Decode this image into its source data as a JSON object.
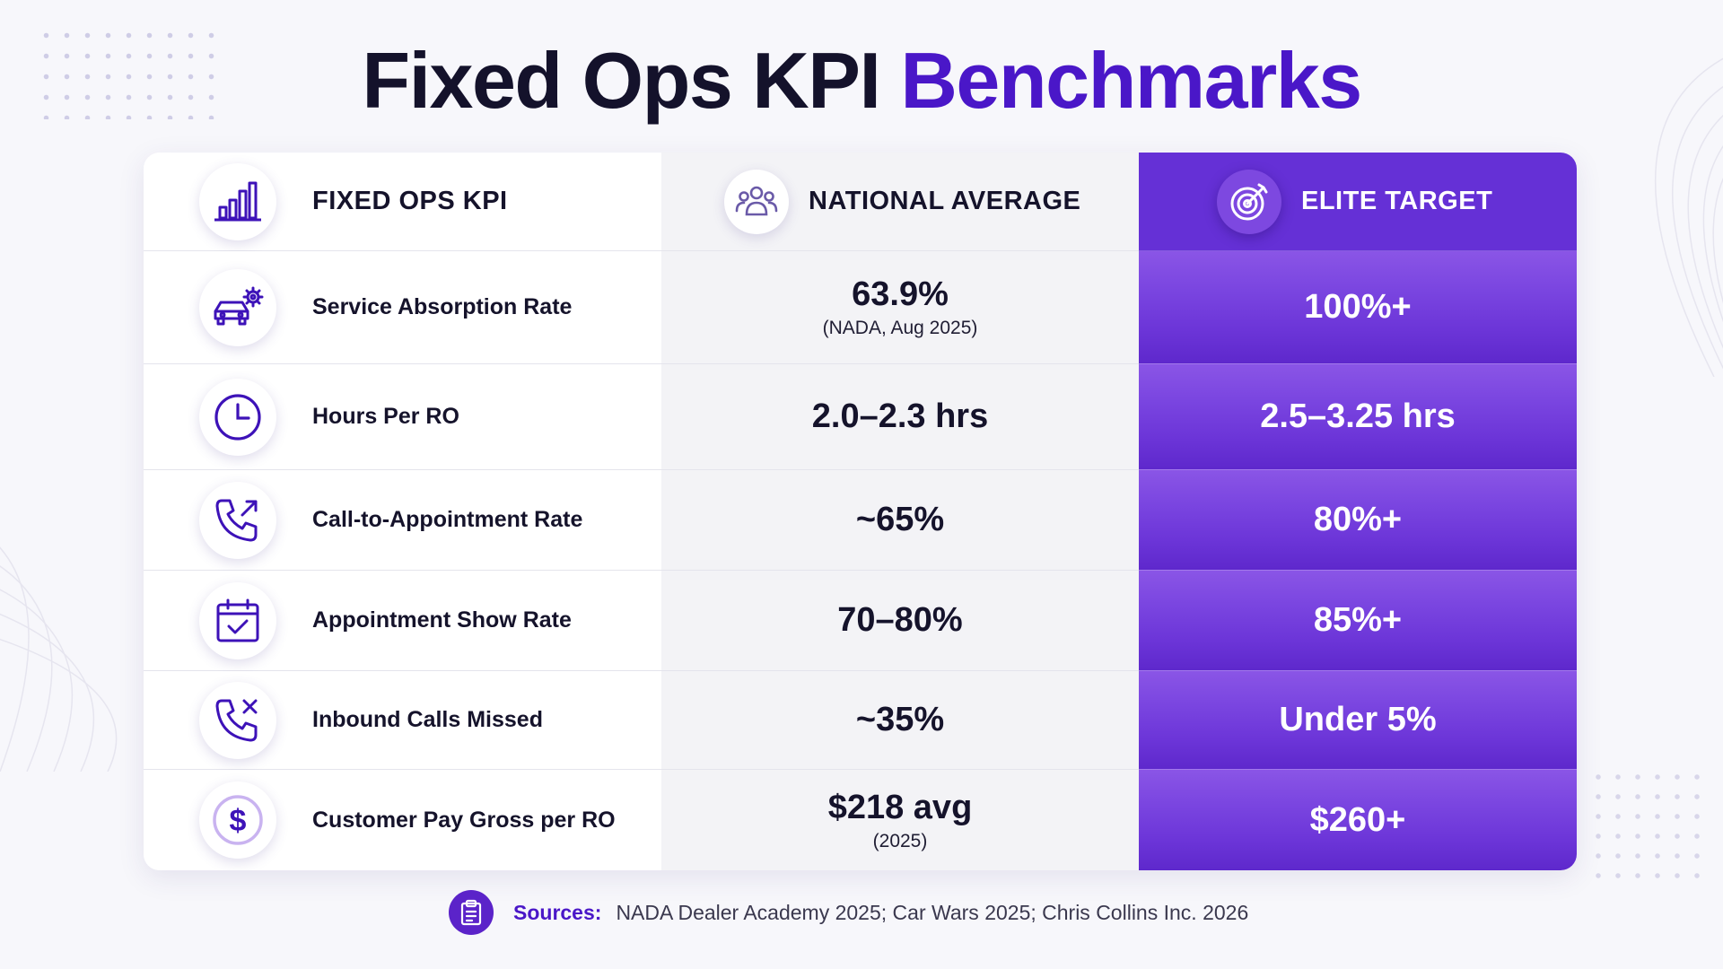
{
  "title": {
    "part1": "Fixed Ops KPI",
    "part2": "Benchmarks"
  },
  "header": {
    "kpi": {
      "label": "FIXED OPS KPI",
      "icon": "bar-chart-icon"
    },
    "national": {
      "label": "NATIONAL AVERAGE",
      "icon": "users-group-icon"
    },
    "elite": {
      "label": "ELITE TARGET",
      "icon": "target-icon"
    }
  },
  "rows": [
    {
      "kpi": "Service Absorption Rate",
      "icon": "car-gear-icon",
      "national": "63.9%",
      "national_note": "(NADA, Aug 2025)",
      "elite": "100%+"
    },
    {
      "kpi": "Hours Per RO",
      "icon": "clock-icon",
      "national": "2.0–2.3 hrs",
      "national_note": "",
      "elite": "2.5–3.25 hrs"
    },
    {
      "kpi": "Call-to-Appointment Rate",
      "icon": "phone-outgoing-icon",
      "national": "~65%",
      "national_note": "",
      "elite": "80%+"
    },
    {
      "kpi": "Appointment Show Rate",
      "icon": "calendar-check-icon",
      "national": "70–80%",
      "national_note": "",
      "elite": "85%+"
    },
    {
      "kpi": "Inbound Calls Missed",
      "icon": "phone-missed-icon",
      "national": "~35%",
      "national_note": "",
      "elite": "Under 5%"
    },
    {
      "kpi": "Customer Pay Gross per RO",
      "icon": "dollar-coin-icon",
      "national": "$218 avg",
      "national_note": "(2025)",
      "elite": "$260+"
    }
  ],
  "sources": {
    "label": "Sources:",
    "text": "NADA Dealer Academy 2025; Car Wars 2025; Chris Collins Inc. 2026",
    "icon": "clipboard-icon"
  },
  "colors": {
    "accent": "#4a17c8",
    "elite_column": "#6c35d8",
    "icon_stroke": "#3d12b8"
  }
}
